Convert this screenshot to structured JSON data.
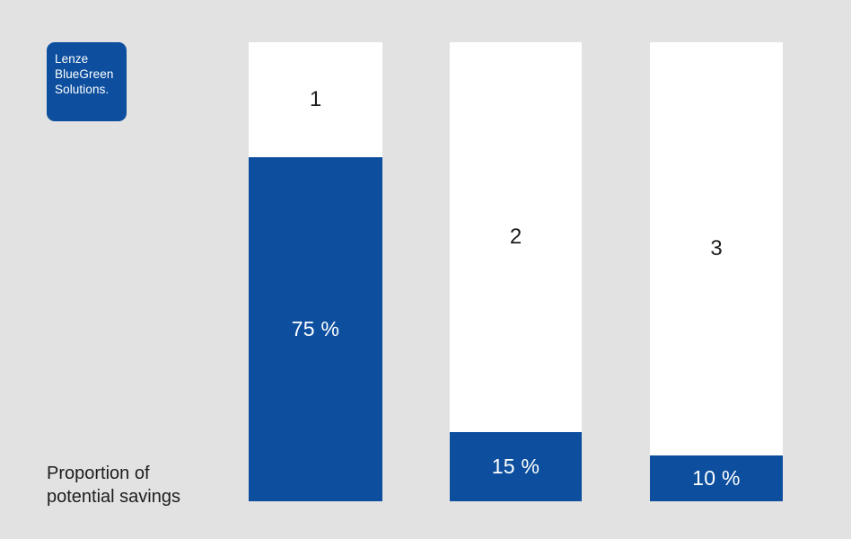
{
  "colors": {
    "brand-blue": "#0d4f9e",
    "background": "#e2e2e2",
    "column-white": "#ffffff",
    "text-dark": "#1d1d1b",
    "text-on-blue": "#ffffff"
  },
  "logo": {
    "lines": [
      "Lenze",
      "BlueGreen",
      "Solutions."
    ]
  },
  "caption": {
    "line1": "Proportion of",
    "line2": "potential savings"
  },
  "chart_data": {
    "type": "bar",
    "title": "Proportion of potential savings",
    "categories": [
      "1",
      "2",
      "3"
    ],
    "values": [
      75,
      15,
      10
    ],
    "value_labels": [
      "75 %",
      "15 %",
      "10 %"
    ],
    "unit": "%",
    "ylim": [
      0,
      100
    ],
    "xlabel": "",
    "ylabel": "",
    "grid": false,
    "legend": "none",
    "orientation": "vertical",
    "notes": "Each white column represents 100%; blue fill from bottom shows the savings share. Category number is centered in the unfilled (white) remainder."
  }
}
